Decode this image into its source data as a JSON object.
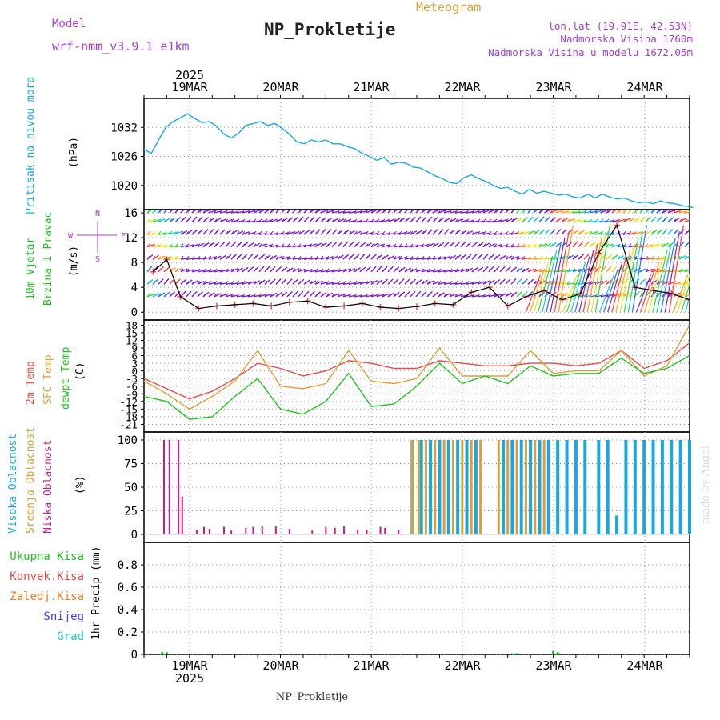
{
  "header": {
    "model_label": "Model",
    "model_name": "wrf-nmm_v3.9.1 e1km",
    "meteogram": "Meteogram",
    "station": "NP_Prokletije",
    "lonlat": "lon,lat (19.91E, 42.53N)",
    "elev": "Nadmorska Visina 1760m",
    "elev_model": "Nadmorska Visina u modelu 1672.05m",
    "footer_station": "NP_Prokletije",
    "credit": "made by Angel"
  },
  "colors": {
    "pressure": "#1aa7e0",
    "t2m": "#e84a4a",
    "sfc": "#d9a13a",
    "dew": "#22c022",
    "high_cloud": "#1aa7e0",
    "mid_cloud": "#d9a13a",
    "low_cloud": "#c0208a",
    "wind_barb": "#7a1fd0",
    "total_precip": "#22c022",
    "conv_precip": "#e84a4a",
    "frz_precip": "#f07a28",
    "snow": "#4040e8",
    "hail": "#22c0c0",
    "title": "#222222",
    "label_purple": "#a040d0"
  },
  "time_axis": {
    "days": [
      "19MAR",
      "20MAR",
      "21MAR",
      "22MAR",
      "23MAR",
      "24MAR"
    ],
    "year": "2025"
  },
  "chart_data": [
    {
      "type": "line",
      "panel": "pressure",
      "ylabel_1": "Pritisak na nivou mora",
      "unit": "(hPa)",
      "ylim": [
        1015,
        1038
      ],
      "yticks": [
        1020,
        1026,
        1032
      ],
      "x_days": [
        0.0,
        0.08,
        0.16,
        0.24,
        0.32,
        0.4,
        0.48,
        0.56,
        0.64,
        0.72,
        0.8,
        0.88,
        0.96,
        1.04,
        1.12,
        1.2,
        1.28,
        1.36,
        1.44,
        1.52,
        1.6,
        1.68,
        1.76,
        1.84,
        1.92,
        2.0,
        2.08,
        2.16,
        2.24,
        2.32,
        2.4,
        2.48,
        2.56,
        2.64,
        2.72,
        2.8,
        2.88,
        2.96,
        3.04,
        3.12,
        3.2,
        3.28,
        3.36,
        3.44,
        3.52,
        3.6,
        3.68,
        3.76,
        3.84,
        3.92,
        4.0,
        4.08,
        4.16,
        4.24,
        4.32,
        4.4,
        4.48,
        4.56,
        4.64,
        4.72,
        4.8,
        4.88,
        4.96,
        5.04,
        5.12,
        5.2,
        5.28,
        5.36,
        5.44,
        5.52,
        5.6,
        5.68,
        5.76,
        5.84,
        5.92,
        6.0,
        6.04
      ],
      "values": [
        1027.5,
        1026.6,
        1029.4,
        1032.0,
        1033.2,
        1034.0,
        1034.8,
        1033.8,
        1033.0,
        1033.2,
        1032.2,
        1030.6,
        1029.8,
        1030.8,
        1032.4,
        1032.8,
        1033.2,
        1032.4,
        1032.8,
        1031.8,
        1030.6,
        1029.0,
        1028.6,
        1029.4,
        1029.0,
        1029.4,
        1028.6,
        1028.6,
        1028.0,
        1027.6,
        1026.6,
        1026.0,
        1025.2,
        1025.8,
        1024.4,
        1024.8,
        1024.6,
        1023.8,
        1023.6,
        1022.8,
        1022.0,
        1021.4,
        1020.6,
        1020.4,
        1021.6,
        1022.2,
        1021.4,
        1020.8,
        1020.0,
        1019.4,
        1019.6,
        1018.8,
        1018.2,
        1019.2,
        1018.4,
        1018.8,
        1018.4,
        1018.0,
        1018.2,
        1017.6,
        1017.4,
        1018.2,
        1017.4,
        1018.2,
        1017.6,
        1017.2,
        1017.4,
        1016.8,
        1016.4,
        1016.6,
        1016.2,
        1016.8,
        1016.4,
        1016.2,
        1015.8,
        1015.6,
        1015.4
      ]
    },
    {
      "type": "scatter",
      "panel": "wind",
      "ylabel_1": "10m Vjetar",
      "ylabel_2": "Brzina i Pravac",
      "unit": "(m/s)",
      "compass": {
        "n": "N",
        "s": "S",
        "e": "E",
        "w": "W"
      },
      "ylim": [
        -1,
        16
      ],
      "yticks": [
        0,
        4,
        8,
        12,
        16
      ],
      "barb_levels": [
        0,
        2.5,
        4.5,
        6.5,
        8.5,
        10.5,
        12.5,
        14.5,
        16
      ],
      "x_days": [
        0.1,
        0.25,
        0.4,
        0.6,
        0.8,
        1.0,
        1.2,
        1.4,
        1.6,
        1.8,
        2.0,
        2.2,
        2.4,
        2.6,
        2.8,
        3.0,
        3.2,
        3.4,
        3.6,
        3.8,
        4.0,
        4.2,
        4.4,
        4.6,
        4.8,
        5.0,
        5.2,
        5.4,
        5.6,
        5.8,
        6.0
      ],
      "speed": [
        6.5,
        8.5,
        2.5,
        0.6,
        1.0,
        1.2,
        1.4,
        1.0,
        1.6,
        1.8,
        0.8,
        1.0,
        1.4,
        0.8,
        0.6,
        0.9,
        1.4,
        1.2,
        3.2,
        4.0,
        1.0,
        2.5,
        3.5,
        2.0,
        3.0,
        9.5,
        14.0,
        4.0,
        3.5,
        3.0,
        2.0
      ]
    },
    {
      "type": "line",
      "panel": "temperature",
      "ylabel_1": "2m Temp",
      "ylabel_2": "SFC Temp",
      "ylabel_3": "dewpt Temp",
      "unit": "(C)",
      "ylim": [
        -24,
        20
      ],
      "yticks": [
        -21,
        -18,
        -15,
        -12,
        -9,
        -6,
        -3,
        0,
        3,
        6,
        9,
        12,
        15,
        18
      ],
      "x_days": [
        0.0,
        0.25,
        0.5,
        0.75,
        1.0,
        1.25,
        1.5,
        1.75,
        2.0,
        2.25,
        2.5,
        2.75,
        3.0,
        3.25,
        3.5,
        3.75,
        4.0,
        4.25,
        4.5,
        4.75,
        5.0,
        5.25,
        5.5,
        5.75,
        6.0
      ],
      "series": [
        {
          "name": "2m Temp",
          "values": [
            -3,
            -7,
            -11,
            -8,
            -3,
            3,
            1,
            -2,
            0,
            4,
            3,
            1,
            1,
            4,
            3,
            2,
            2,
            3,
            3,
            2,
            3,
            8,
            1,
            4,
            11
          ]
        },
        {
          "name": "SFC Temp",
          "values": [
            -4,
            -9,
            -15,
            -10,
            -4,
            8,
            -6,
            -7,
            -5,
            8,
            -4,
            -5,
            -3,
            9,
            -2,
            -2,
            -2,
            8,
            -1,
            0,
            0,
            8,
            -2,
            2,
            18
          ]
        },
        {
          "name": "dewpt Temp",
          "values": [
            -10,
            -12,
            -19,
            -18,
            -10,
            -3,
            -15,
            -17,
            -12,
            -1,
            -14,
            -13,
            -6,
            3,
            -5,
            -2,
            -5,
            2,
            -2,
            -1,
            -1,
            5,
            -1,
            1,
            6
          ]
        }
      ]
    },
    {
      "type": "bar",
      "panel": "clouds",
      "ylabel_1": "Visoka Oblacnost",
      "ylabel_2": "Srednja Oblacnost",
      "ylabel_3": "Niska Oblacnost",
      "unit": "(%)",
      "ylim": [
        0,
        100
      ],
      "yticks": [
        0,
        25,
        50,
        75,
        100
      ],
      "low_x_days": [
        0.22,
        0.28,
        0.38,
        0.42,
        0.58,
        0.66,
        0.72,
        0.88,
        0.96,
        1.12,
        1.2,
        1.3,
        1.45,
        1.6,
        1.85,
        2.0,
        2.1,
        2.2,
        2.35,
        2.45,
        2.6,
        2.65,
        2.8
      ],
      "low_values": [
        100,
        100,
        100,
        40,
        5,
        8,
        6,
        8,
        4,
        7,
        8,
        9,
        9,
        6,
        4,
        8,
        7,
        9,
        5,
        5,
        8,
        7,
        5
      ],
      "mid_x_days": [
        2.95,
        3.02,
        3.1,
        3.2,
        3.3,
        3.4,
        3.5,
        3.6,
        3.7,
        3.9,
        4.0,
        4.1,
        4.2,
        4.3,
        4.4
      ],
      "mid_values": [
        100,
        100,
        100,
        100,
        100,
        100,
        100,
        100,
        100,
        100,
        100,
        100,
        100,
        100,
        100
      ],
      "high_x_days": [
        2.95,
        3.05,
        3.15,
        3.25,
        3.35,
        3.45,
        3.55,
        3.65,
        3.95,
        4.05,
        4.15,
        4.25,
        4.35,
        4.45,
        4.55,
        4.65,
        4.75,
        4.85,
        5.0,
        5.1,
        5.2,
        5.3,
        5.4,
        5.5,
        5.6,
        5.7,
        5.8,
        5.9,
        6.0
      ],
      "high_values": [
        100,
        100,
        100,
        100,
        100,
        100,
        100,
        100,
        100,
        100,
        100,
        100,
        100,
        100,
        100,
        100,
        100,
        100,
        100,
        100,
        20,
        100,
        100,
        100,
        100,
        100,
        100,
        100,
        100
      ]
    },
    {
      "type": "bar",
      "panel": "precip",
      "ylabel_1": "1hr Precip (mm)",
      "legend": [
        "Ukupna Kisa",
        "Konvek.Kisa",
        "Zaledj.Kisa",
        "Snijeg",
        "Grad"
      ],
      "ylim": [
        0,
        1.0
      ],
      "yticks": [
        0,
        0.2,
        0.4,
        0.6,
        0.8
      ],
      "x_days": [
        0.2,
        0.25,
        4.05,
        4.1,
        4.5,
        4.55
      ],
      "values": [
        0.02,
        0.02,
        0.01,
        0.01,
        0.03,
        0.02
      ]
    }
  ]
}
